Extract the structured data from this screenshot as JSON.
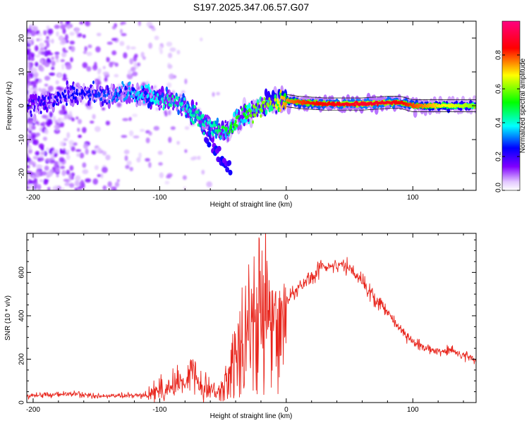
{
  "title": "S197.2025.347.06.57.G07",
  "colors": {
    "axis": "#000000",
    "snr_line": "#e8251c",
    "colormap": [
      "#ffffff",
      "#e3c8ff",
      "#8000ff",
      "#0000ff",
      "#00ffff",
      "#00ff00",
      "#ffff00",
      "#ff0000",
      "#ff0080"
    ]
  },
  "chart_data": [
    {
      "type": "heatmap",
      "xlabel": "Height of straight line (km)",
      "ylabel": "Frequency (Hz)",
      "xlim": [
        -205,
        150
      ],
      "ylim": [
        -25,
        25
      ],
      "xticks": [
        -200,
        -100,
        0,
        100
      ],
      "xtick_labels": [
        "-200",
        "-100",
        "0",
        "100"
      ],
      "yticks": [
        -20,
        -10,
        0,
        10,
        20
      ],
      "ytick_labels": [
        "-20",
        "-10",
        "0",
        "10",
        "20"
      ],
      "colorbar": {
        "label": "Normalized spectral amplitude",
        "range": [
          0,
          1
        ],
        "ticks": [
          0.0,
          0.2,
          0.4,
          0.6,
          0.8
        ],
        "tick_labels": [
          "0.0",
          "0.2",
          "0.4",
          "0.6",
          "0.8"
        ]
      },
      "ridge": {
        "x": [
          -200,
          -180,
          -160,
          -140,
          -120,
          -100,
          -90,
          -80,
          -70,
          -60,
          -55,
          -50,
          -45,
          -40,
          -35,
          -30,
          -25,
          -20,
          -15,
          -10,
          -5,
          0,
          10,
          30,
          60,
          80,
          90,
          100,
          120,
          150
        ],
        "freq": [
          0,
          3,
          4,
          3,
          4,
          2,
          2,
          -1,
          -3,
          -6,
          -7,
          -8,
          -7,
          -5,
          -3,
          -2,
          -1,
          0,
          0.5,
          1,
          1.5,
          1.5,
          1,
          0.5,
          0.5,
          1,
          1,
          0,
          0,
          0
        ],
        "amplitude": [
          0.2,
          0.25,
          0.25,
          0.3,
          0.35,
          0.4,
          0.45,
          0.4,
          0.45,
          0.4,
          0.45,
          0.5,
          0.5,
          0.55,
          0.5,
          0.55,
          0.6,
          0.6,
          0.6,
          0.65,
          0.7,
          0.75,
          0.8,
          0.85,
          0.9,
          0.88,
          0.85,
          0.8,
          0.7,
          0.6
        ]
      }
    },
    {
      "type": "line",
      "xlabel": "Height of straight line (km)",
      "ylabel": "SNR (10 * v/v)",
      "xlim": [
        -205,
        150
      ],
      "ylim": [
        0,
        780
      ],
      "xticks": [
        -200,
        -100,
        0,
        100
      ],
      "xtick_labels": [
        "-200",
        "-100",
        "0",
        "100"
      ],
      "yticks": [
        0,
        200,
        400,
        600
      ],
      "ytick_labels": [
        "0",
        "200",
        "400",
        "600"
      ],
      "series": [
        {
          "name": "SNR",
          "x": [
            -205,
            -190,
            -170,
            -150,
            -130,
            -110,
            -100,
            -90,
            -80,
            -75,
            -70,
            -60,
            -55,
            -50,
            -45,
            -40,
            -35,
            -30,
            -25,
            -20,
            -15,
            -10,
            -5,
            0,
            10,
            20,
            30,
            40,
            50,
            60,
            70,
            80,
            90,
            100,
            110,
            120,
            130,
            140,
            150
          ],
          "y": [
            30,
            35,
            40,
            30,
            30,
            35,
            60,
            80,
            100,
            150,
            90,
            70,
            50,
            60,
            120,
            220,
            300,
            380,
            420,
            460,
            420,
            380,
            430,
            470,
            530,
            580,
            630,
            640,
            620,
            560,
            480,
            420,
            340,
            280,
            250,
            240,
            240,
            220,
            200
          ]
        }
      ]
    }
  ]
}
